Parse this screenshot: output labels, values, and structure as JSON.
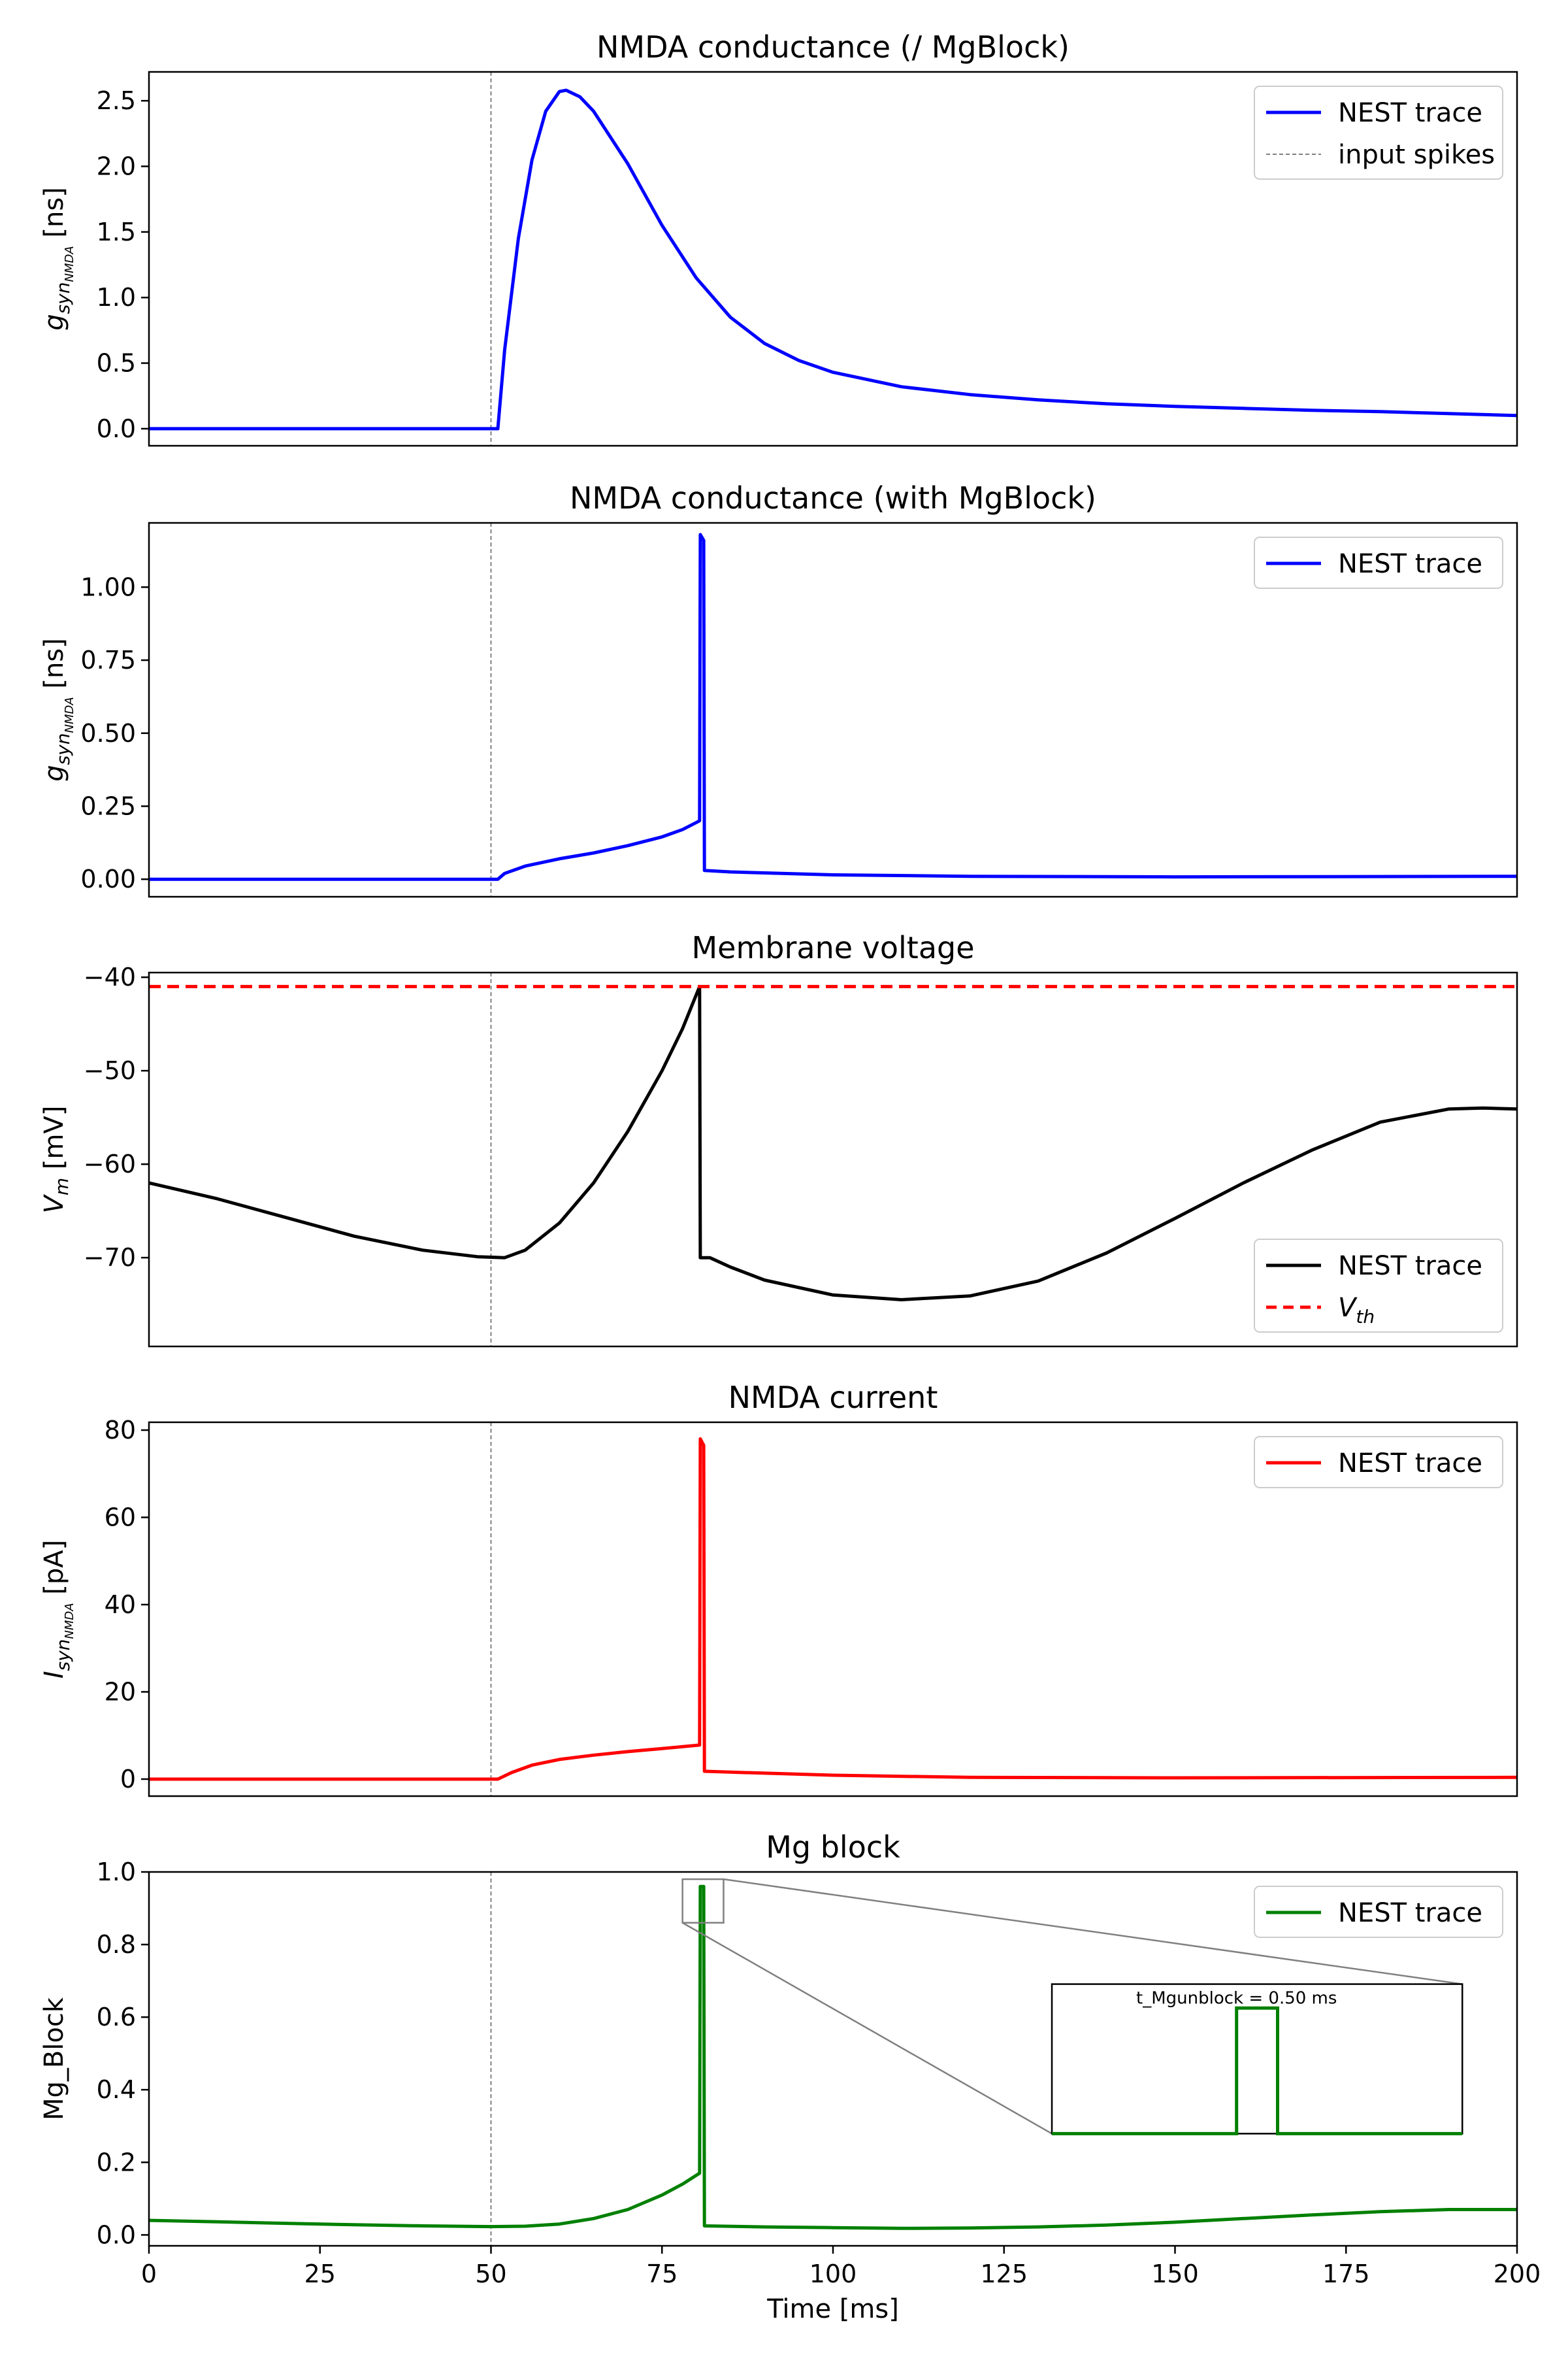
{
  "chart_data": [
    {
      "type": "line",
      "title": "NMDA conductance (/ MgBlock)",
      "ylabel": "g_syn_NMDA [ns]",
      "xlim": [
        0,
        200
      ],
      "ylim": [
        -0.13,
        2.72
      ],
      "yticks": [
        0.0,
        0.5,
        1.0,
        1.5,
        2.0,
        2.5
      ],
      "ytick_labels": [
        "0.0",
        "0.5",
        "1.0",
        "1.5",
        "2.0",
        "2.5"
      ],
      "vline": {
        "x": 50,
        "label": "input spikes",
        "color": "#808080"
      },
      "legend_placement": "top-right",
      "series": [
        {
          "name": "NEST trace",
          "color": "#0000ff",
          "points": [
            [
              0,
              0
            ],
            [
              50,
              0
            ],
            [
              51,
              0
            ],
            [
              52,
              0.6
            ],
            [
              54,
              1.45
            ],
            [
              56,
              2.05
            ],
            [
              58,
              2.42
            ],
            [
              60,
              2.57
            ],
            [
              61,
              2.58
            ],
            [
              63,
              2.53
            ],
            [
              65,
              2.42
            ],
            [
              70,
              2.02
            ],
            [
              75,
              1.55
            ],
            [
              80,
              1.15
            ],
            [
              85,
              0.85
            ],
            [
              90,
              0.65
            ],
            [
              95,
              0.52
            ],
            [
              100,
              0.43
            ],
            [
              110,
              0.32
            ],
            [
              120,
              0.26
            ],
            [
              130,
              0.22
            ],
            [
              140,
              0.19
            ],
            [
              150,
              0.17
            ],
            [
              160,
              0.155
            ],
            [
              170,
              0.14
            ],
            [
              180,
              0.13
            ],
            [
              190,
              0.115
            ],
            [
              200,
              0.1
            ]
          ]
        }
      ]
    },
    {
      "type": "line",
      "title": "NMDA conductance (with MgBlock)",
      "ylabel": "g_syn_NMDA [ns]",
      "xlim": [
        0,
        200
      ],
      "ylim": [
        -0.06,
        1.22
      ],
      "yticks": [
        0.0,
        0.25,
        0.5,
        0.75,
        1.0
      ],
      "ytick_labels": [
        "0.00",
        "0.25",
        "0.50",
        "0.75",
        "1.00"
      ],
      "vline": {
        "x": 50,
        "color": "#808080"
      },
      "legend_placement": "top-right",
      "series": [
        {
          "name": "NEST trace",
          "color": "#0000ff",
          "points": [
            [
              0,
              0
            ],
            [
              50,
              0
            ],
            [
              51,
              0
            ],
            [
              52,
              0.02
            ],
            [
              55,
              0.045
            ],
            [
              60,
              0.07
            ],
            [
              65,
              0.09
            ],
            [
              70,
              0.115
            ],
            [
              75,
              0.145
            ],
            [
              78,
              0.17
            ],
            [
              80.5,
              0.2
            ],
            [
              80.6,
              1.18
            ],
            [
              81.1,
              1.16
            ],
            [
              81.2,
              0.03
            ],
            [
              85,
              0.025
            ],
            [
              100,
              0.015
            ],
            [
              120,
              0.01
            ],
            [
              150,
              0.008
            ],
            [
              200,
              0.01
            ]
          ]
        }
      ]
    },
    {
      "type": "line",
      "title": "Membrane voltage",
      "ylabel": "V_m [mV]",
      "xlim": [
        0,
        200
      ],
      "ylim": [
        -79.5,
        -39.5
      ],
      "yticks": [
        -70,
        -60,
        -50,
        -40
      ],
      "ytick_labels": [
        "−70",
        "−60",
        "−50",
        "−40"
      ],
      "vline": {
        "x": 50,
        "color": "#808080"
      },
      "legend_placement": "bottom-right",
      "series": [
        {
          "name": "NEST trace",
          "color": "#000000",
          "points": [
            [
              0,
              -62
            ],
            [
              10,
              -63.7
            ],
            [
              20,
              -65.7
            ],
            [
              30,
              -67.7
            ],
            [
              40,
              -69.2
            ],
            [
              48,
              -69.9
            ],
            [
              52,
              -70
            ],
            [
              55,
              -69.2
            ],
            [
              60,
              -66.3
            ],
            [
              65,
              -62
            ],
            [
              70,
              -56.5
            ],
            [
              75,
              -50
            ],
            [
              78,
              -45.5
            ],
            [
              80.5,
              -41
            ],
            [
              80.6,
              -70
            ],
            [
              82,
              -70
            ],
            [
              85,
              -71
            ],
            [
              90,
              -72.4
            ],
            [
              100,
              -74
            ],
            [
              110,
              -74.5
            ],
            [
              120,
              -74.1
            ],
            [
              130,
              -72.5
            ],
            [
              140,
              -69.5
            ],
            [
              150,
              -65.8
            ],
            [
              160,
              -62
            ],
            [
              170,
              -58.5
            ],
            [
              180,
              -55.5
            ],
            [
              190,
              -54.1
            ],
            [
              195,
              -54
            ],
            [
              200,
              -54.1
            ]
          ]
        },
        {
          "name": "V_th",
          "color": "#ff0000",
          "dashed": true,
          "points": [
            [
              0,
              -41
            ],
            [
              200,
              -41
            ]
          ]
        }
      ]
    },
    {
      "type": "line",
      "title": "NMDA current",
      "ylabel": "I_syn_NMDA [pA]",
      "xlim": [
        0,
        200
      ],
      "ylim": [
        -3.9,
        81.8
      ],
      "yticks": [
        0,
        20,
        40,
        60,
        80
      ],
      "ytick_labels": [
        "0",
        "20",
        "40",
        "60",
        "80"
      ],
      "vline": {
        "x": 50,
        "color": "#808080"
      },
      "legend_placement": "top-right",
      "series": [
        {
          "name": "NEST trace",
          "color": "#ff0000",
          "points": [
            [
              0,
              0
            ],
            [
              50,
              0
            ],
            [
              51,
              0
            ],
            [
              53,
              1.5
            ],
            [
              56,
              3.2
            ],
            [
              60,
              4.5
            ],
            [
              65,
              5.5
            ],
            [
              70,
              6.3
            ],
            [
              75,
              7
            ],
            [
              80.5,
              7.8
            ],
            [
              80.6,
              78
            ],
            [
              81.1,
              76.5
            ],
            [
              81.2,
              1.8
            ],
            [
              85,
              1.6
            ],
            [
              100,
              0.9
            ],
            [
              120,
              0.4
            ],
            [
              150,
              0.3
            ],
            [
              200,
              0.4
            ]
          ]
        }
      ]
    },
    {
      "type": "line",
      "title": "Mg block",
      "ylabel": "Mg_Block",
      "xlabel": "Time [ms]",
      "xlim": [
        0,
        200
      ],
      "ylim": [
        -0.03,
        1.0
      ],
      "yticks": [
        0.0,
        0.2,
        0.4,
        0.6,
        0.8,
        1.0
      ],
      "ytick_labels": [
        "0.0",
        "0.2",
        "0.4",
        "0.6",
        "0.8",
        "1.0"
      ],
      "xticks": [
        0,
        25,
        50,
        75,
        100,
        125,
        150,
        175,
        200
      ],
      "xtick_labels": [
        "0",
        "25",
        "50",
        "75",
        "100",
        "125",
        "150",
        "175",
        "200"
      ],
      "vline": {
        "x": 50,
        "color": "#808080"
      },
      "legend_placement": "top-right",
      "inset": {
        "label": "t_Mgunblock = 0.50 ms",
        "zoom_x": [
          78,
          84
        ],
        "zoom_y": [
          0.86,
          0.98
        ]
      },
      "series": [
        {
          "name": "NEST trace",
          "color": "#008000",
          "points": [
            [
              0,
              0.04
            ],
            [
              10,
              0.036
            ],
            [
              20,
              0.032
            ],
            [
              30,
              0.028
            ],
            [
              40,
              0.025
            ],
            [
              50,
              0.023
            ],
            [
              55,
              0.024
            ],
            [
              60,
              0.03
            ],
            [
              65,
              0.045
            ],
            [
              70,
              0.07
            ],
            [
              75,
              0.11
            ],
            [
              78,
              0.14
            ],
            [
              80.5,
              0.17
            ],
            [
              80.6,
              0.96
            ],
            [
              81.1,
              0.96
            ],
            [
              81.2,
              0.025
            ],
            [
              90,
              0.022
            ],
            [
              100,
              0.02
            ],
            [
              110,
              0.018
            ],
            [
              120,
              0.019
            ],
            [
              130,
              0.022
            ],
            [
              140,
              0.027
            ],
            [
              150,
              0.035
            ],
            [
              160,
              0.045
            ],
            [
              170,
              0.055
            ],
            [
              180,
              0.064
            ],
            [
              190,
              0.07
            ],
            [
              200,
              0.07
            ]
          ]
        }
      ]
    }
  ]
}
